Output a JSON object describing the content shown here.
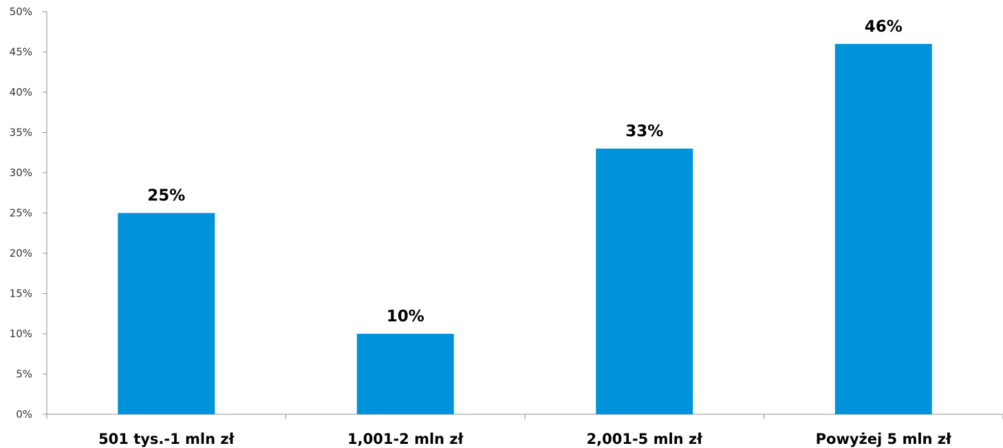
{
  "chart_data": {
    "type": "bar",
    "categories": [
      "501 tys.-1 mln zł",
      "1,001-2 mln zł",
      "2,001-5 mln zł",
      "Powyżej 5 mln zł"
    ],
    "values": [
      25,
      10,
      33,
      46
    ],
    "data_labels": [
      "25%",
      "10%",
      "33%",
      "46%"
    ],
    "ylim": [
      0,
      50
    ],
    "yticks": [
      0,
      5,
      10,
      15,
      20,
      25,
      30,
      35,
      40,
      45,
      50
    ],
    "ytick_labels": [
      "0%",
      "5%",
      "10%",
      "15%",
      "20%",
      "25%",
      "30%",
      "35%",
      "40%",
      "45%",
      "50%"
    ],
    "grid": false,
    "legend": "none",
    "bar_color": "#0093d9"
  }
}
